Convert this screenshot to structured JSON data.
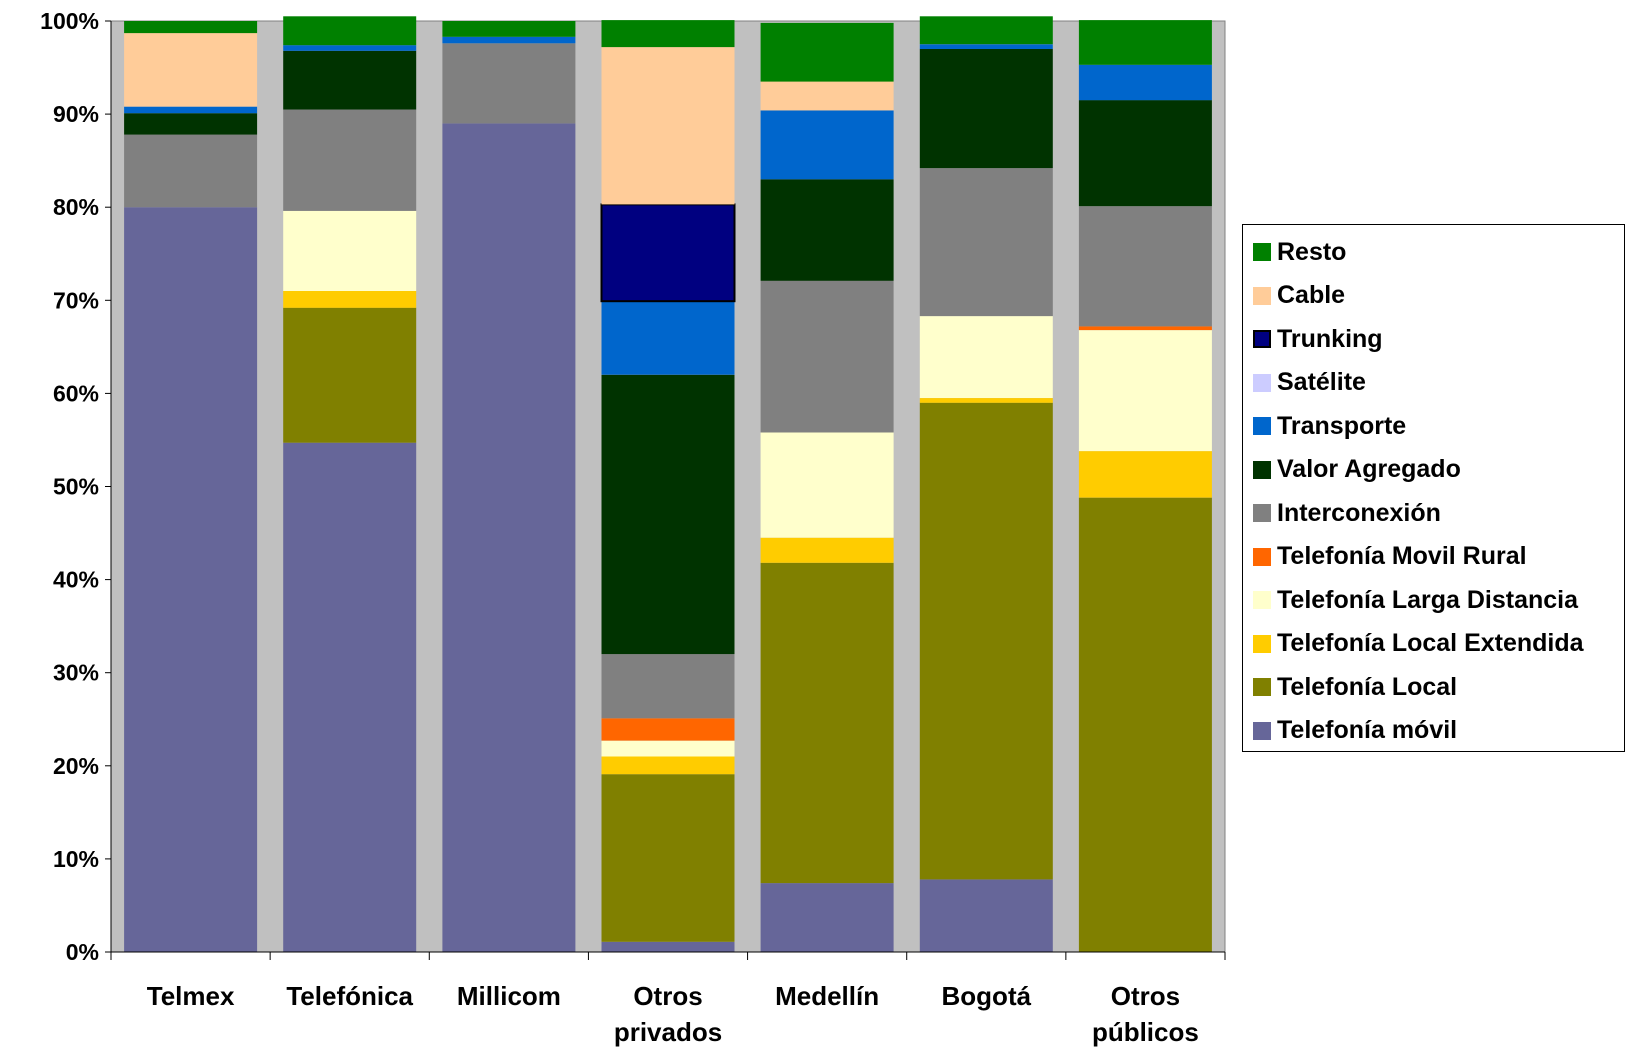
{
  "chart_data": {
    "type": "bar",
    "stacked": true,
    "percent_axis": true,
    "ylim": [
      0,
      100
    ],
    "yticks": [
      "0%",
      "10%",
      "20%",
      "30%",
      "40%",
      "50%",
      "60%",
      "70%",
      "80%",
      "90%",
      "100%"
    ],
    "categories": [
      [
        "Telmex"
      ],
      [
        "Telefónica"
      ],
      [
        "Millicom"
      ],
      [
        "Otros",
        "privados"
      ],
      [
        "Medellín"
      ],
      [
        "Bogotá"
      ],
      [
        "Otros",
        "públicos"
      ]
    ],
    "legend_position": "right",
    "plot_background": "#c0c0c0",
    "series": [
      {
        "name": "Telefonía móvil",
        "color": "#666699",
        "values": [
          80.0,
          54.7,
          89.0,
          1.1,
          7.4,
          7.8,
          0.0
        ]
      },
      {
        "name": "Telefonía Local",
        "color": "#808000",
        "values": [
          0.0,
          14.5,
          0.0,
          18.0,
          34.4,
          51.2,
          48.8
        ]
      },
      {
        "name": "Telefonía Local Extendida",
        "color": "#ffcc00",
        "values": [
          0.0,
          1.8,
          0.0,
          1.9,
          2.7,
          0.5,
          5.0
        ]
      },
      {
        "name": "Telefonía Larga Distancia",
        "color": "#ffffcc",
        "values": [
          0.0,
          8.6,
          0.0,
          1.7,
          11.3,
          8.8,
          13.0
        ]
      },
      {
        "name": "Telefonía Movil Rural",
        "color": "#ff6600",
        "values": [
          0.0,
          0.0,
          0.0,
          2.4,
          0.0,
          0.0,
          0.4
        ]
      },
      {
        "name": "Interconexión",
        "color": "#808080",
        "values": [
          7.8,
          10.9,
          8.6,
          6.9,
          16.3,
          15.9,
          12.9
        ]
      },
      {
        "name": "Valor Agregado",
        "color": "#003300",
        "values": [
          2.3,
          6.3,
          0.0,
          30.0,
          10.9,
          12.8,
          11.4
        ]
      },
      {
        "name": "Transporte",
        "color": "#0066cc",
        "values": [
          0.7,
          0.6,
          0.7,
          7.9,
          7.4,
          0.5,
          3.8
        ]
      },
      {
        "name": "Satélite",
        "color": "#ccccff",
        "values": [
          0.0,
          0.0,
          0.0,
          0.0,
          0.0,
          0.0,
          0.0
        ]
      },
      {
        "name": "Trunking",
        "color": "#000080",
        "values": [
          0.0,
          0.0,
          0.0,
          10.4,
          0.0,
          0.0,
          0.0
        ]
      },
      {
        "name": "Cable",
        "color": "#ffcc99",
        "values": [
          7.9,
          0.0,
          0.0,
          16.9,
          3.1,
          0.0,
          0.0
        ]
      },
      {
        "name": "Resto",
        "color": "#008000",
        "values": [
          1.3,
          3.1,
          1.7,
          2.9,
          6.3,
          3.0,
          4.8
        ]
      }
    ],
    "legend_order": [
      "Resto",
      "Cable",
      "Trunking",
      "Satélite",
      "Transporte",
      "Valor Agregado",
      "Interconexión",
      "Telefonía Movil Rural",
      "Telefonía Larga Distancia",
      "Telefonía Local Extendida",
      "Telefonía Local",
      "Telefonía móvil"
    ]
  }
}
